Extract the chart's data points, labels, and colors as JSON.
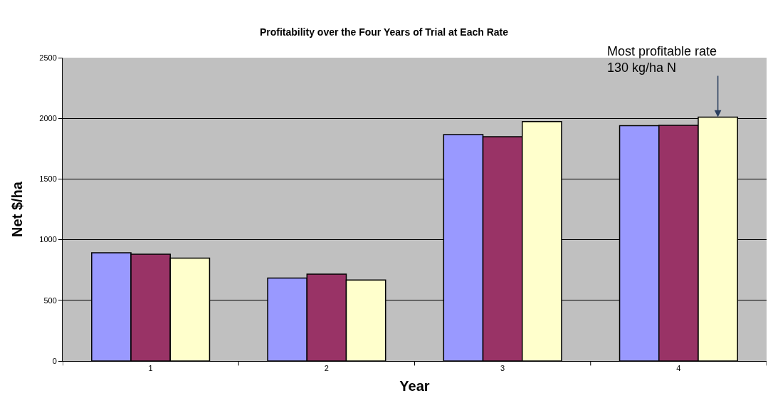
{
  "chart_data": {
    "type": "bar",
    "title": "Profitability over the Four Years of Trial at Each Rate",
    "xlabel": "Year",
    "ylabel": "Net $/ha",
    "categories": [
      "1",
      "2",
      "3",
      "4"
    ],
    "series": [
      {
        "color": "#9999ff",
        "values": [
          892,
          683,
          1866,
          1939
        ]
      },
      {
        "color": "#993366",
        "values": [
          880,
          716,
          1848,
          1943
        ]
      },
      {
        "color": "#ffffcc",
        "values": [
          848,
          667,
          1974,
          2010
        ]
      }
    ],
    "ylim": [
      0,
      2500
    ],
    "yticks": [
      0,
      500,
      1000,
      1500,
      2000,
      2500
    ],
    "grid": "y",
    "annotations": [
      "Most profitable rate\n130 kg/ha N"
    ]
  }
}
